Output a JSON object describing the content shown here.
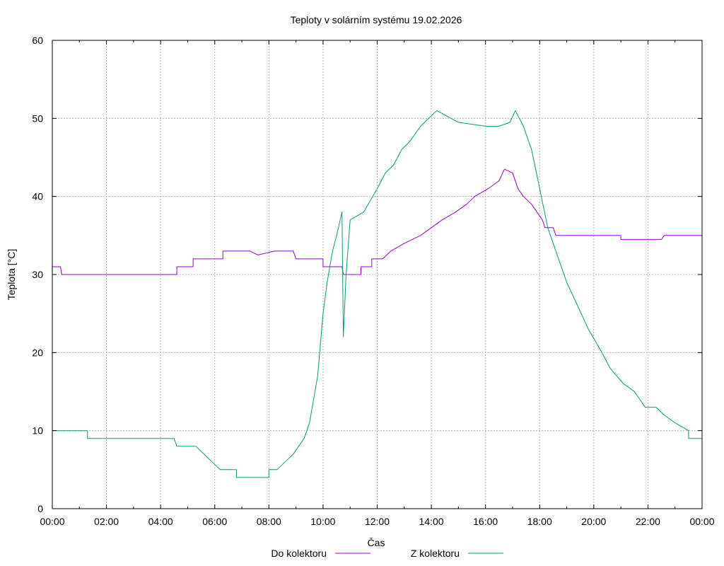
{
  "chart_data": {
    "type": "line",
    "title": "Teploty v solárním systému 19.02.2026",
    "xlabel": "Čas",
    "ylabel": "Teplota [°C]",
    "x_unit": "hours",
    "xlim": [
      0,
      24
    ],
    "ylim": [
      0,
      60
    ],
    "grid": true,
    "legend_position": "bottom-center",
    "xticks": [
      {
        "value": 0,
        "label": "00:00"
      },
      {
        "value": 2,
        "label": "02:00"
      },
      {
        "value": 4,
        "label": "04:00"
      },
      {
        "value": 6,
        "label": "06:00"
      },
      {
        "value": 8,
        "label": "08:00"
      },
      {
        "value": 10,
        "label": "10:00"
      },
      {
        "value": 12,
        "label": "12:00"
      },
      {
        "value": 14,
        "label": "14:00"
      },
      {
        "value": 16,
        "label": "16:00"
      },
      {
        "value": 18,
        "label": "18:00"
      },
      {
        "value": 20,
        "label": "20:00"
      },
      {
        "value": 22,
        "label": "22:00"
      },
      {
        "value": 24,
        "label": "00:00"
      }
    ],
    "yticks": [
      {
        "value": 0,
        "label": "0"
      },
      {
        "value": 10,
        "label": "10"
      },
      {
        "value": 20,
        "label": "20"
      },
      {
        "value": 30,
        "label": "30"
      },
      {
        "value": 40,
        "label": "40"
      },
      {
        "value": 50,
        "label": "50"
      },
      {
        "value": 60,
        "label": "60"
      }
    ],
    "series": [
      {
        "name": "Do kolektoru",
        "color": "#9400d3",
        "points": [
          [
            0,
            31
          ],
          [
            0.3,
            31
          ],
          [
            0.35,
            30
          ],
          [
            4.6,
            30
          ],
          [
            4.6,
            31
          ],
          [
            5.2,
            31
          ],
          [
            5.2,
            32
          ],
          [
            6.3,
            32
          ],
          [
            6.3,
            33
          ],
          [
            7.3,
            33
          ],
          [
            7.6,
            32.5
          ],
          [
            8.2,
            33
          ],
          [
            8.9,
            33
          ],
          [
            9,
            32
          ],
          [
            10,
            32
          ],
          [
            10,
            31
          ],
          [
            10.7,
            31
          ],
          [
            10.75,
            30
          ],
          [
            11.4,
            30
          ],
          [
            11.4,
            31
          ],
          [
            11.8,
            31
          ],
          [
            11.8,
            32
          ],
          [
            12.2,
            32
          ],
          [
            12.5,
            33
          ],
          [
            13,
            34
          ],
          [
            13.6,
            35
          ],
          [
            14,
            36
          ],
          [
            14.4,
            37
          ],
          [
            14.9,
            38
          ],
          [
            15.3,
            39
          ],
          [
            15.6,
            40
          ],
          [
            16.1,
            41
          ],
          [
            16.5,
            42
          ],
          [
            16.7,
            43.5
          ],
          [
            17,
            43
          ],
          [
            17.1,
            42
          ],
          [
            17.2,
            41
          ],
          [
            17.4,
            40
          ],
          [
            17.7,
            39
          ],
          [
            17.9,
            38
          ],
          [
            18.1,
            37
          ],
          [
            18.2,
            36
          ],
          [
            18.5,
            36
          ],
          [
            18.6,
            35
          ],
          [
            21,
            35
          ],
          [
            21,
            34.5
          ],
          [
            22.5,
            34.5
          ],
          [
            22.6,
            35
          ],
          [
            24,
            35
          ]
        ]
      },
      {
        "name": "Z kolektoru",
        "color": "#009e73",
        "points": [
          [
            0,
            10
          ],
          [
            1.3,
            10
          ],
          [
            1.3,
            9
          ],
          [
            4.5,
            9
          ],
          [
            4.6,
            8
          ],
          [
            5.3,
            8
          ],
          [
            5.6,
            7
          ],
          [
            5.9,
            6
          ],
          [
            6.2,
            5
          ],
          [
            6.8,
            5
          ],
          [
            6.8,
            4
          ],
          [
            8,
            4
          ],
          [
            8,
            5
          ],
          [
            8.3,
            5
          ],
          [
            8.6,
            6
          ],
          [
            8.9,
            7
          ],
          [
            9.1,
            8
          ],
          [
            9.3,
            9
          ],
          [
            9.5,
            11
          ],
          [
            9.6,
            13
          ],
          [
            9.8,
            17
          ],
          [
            9.9,
            21
          ],
          [
            10,
            25
          ],
          [
            10.15,
            29
          ],
          [
            10.35,
            33
          ],
          [
            10.5,
            35
          ],
          [
            10.6,
            36.5
          ],
          [
            10.7,
            38
          ],
          [
            10.75,
            22
          ],
          [
            10.85,
            30
          ],
          [
            11,
            37
          ],
          [
            11.5,
            38
          ],
          [
            12,
            41
          ],
          [
            12.3,
            43
          ],
          [
            12.6,
            44
          ],
          [
            12.9,
            46
          ],
          [
            13.2,
            47
          ],
          [
            13.6,
            49
          ],
          [
            13.9,
            50
          ],
          [
            14.2,
            51
          ],
          [
            15,
            49.5
          ],
          [
            16,
            49
          ],
          [
            16.5,
            49
          ],
          [
            16.9,
            49.5
          ],
          [
            17.1,
            51
          ],
          [
            17.4,
            49
          ],
          [
            17.7,
            46
          ],
          [
            18,
            41
          ],
          [
            18.3,
            36
          ],
          [
            18.6,
            33
          ],
          [
            19,
            29
          ],
          [
            19.4,
            26
          ],
          [
            19.8,
            23
          ],
          [
            20.3,
            20
          ],
          [
            20.6,
            18
          ],
          [
            21.1,
            16
          ],
          [
            21.5,
            15
          ],
          [
            21.9,
            13
          ],
          [
            22.3,
            13
          ],
          [
            22.6,
            12
          ],
          [
            23,
            11
          ],
          [
            23.5,
            10
          ],
          [
            23.5,
            9
          ],
          [
            24,
            9
          ]
        ]
      }
    ]
  }
}
